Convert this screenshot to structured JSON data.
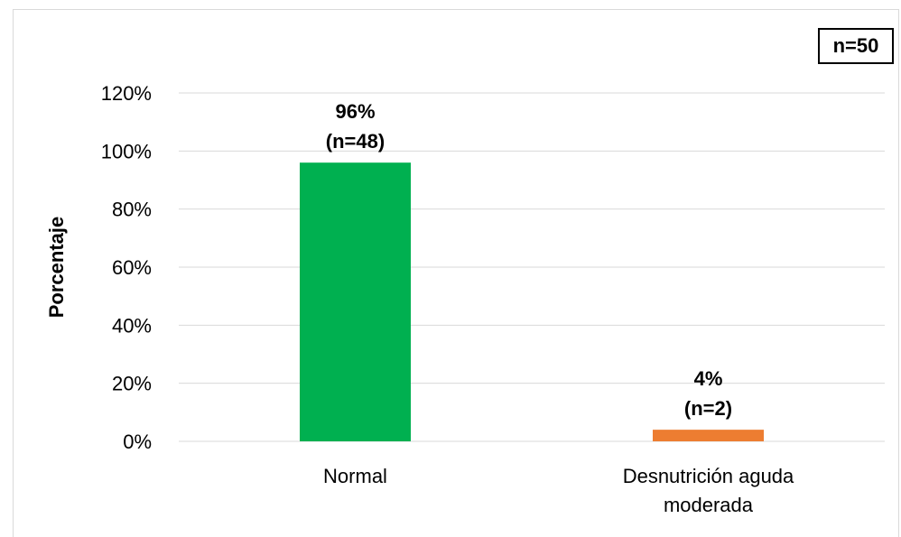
{
  "badge": "n=50",
  "chart_data": {
    "type": "bar",
    "categories": [
      [
        "Normal"
      ],
      [
        "Desnutrición aguda",
        "moderada"
      ]
    ],
    "values": [
      96,
      4
    ],
    "data_labels": [
      [
        "96%",
        "(n=48)"
      ],
      [
        "4%",
        "(n=2)"
      ]
    ],
    "colors": [
      "#00b050",
      "#ed7d31"
    ],
    "ylabel": "Porcentaje",
    "ylim": [
      0,
      120
    ],
    "yticks": [
      0,
      20,
      40,
      60,
      80,
      100,
      120
    ],
    "ytick_labels": [
      "0%",
      "20%",
      "40%",
      "60%",
      "80%",
      "100%",
      "120%"
    ],
    "grid": true,
    "gridline_color": "#d9d9d9"
  }
}
